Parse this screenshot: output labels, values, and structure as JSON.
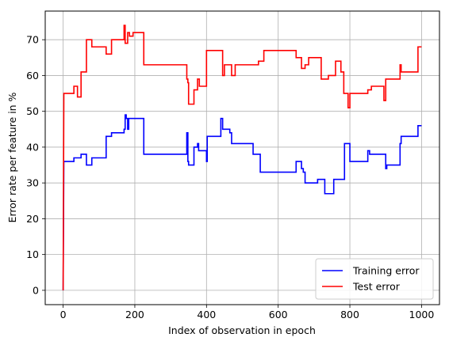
{
  "chart_data": {
    "type": "line",
    "title": "",
    "xlabel": "Index of observation in epoch",
    "ylabel": "Error rate per feature in %",
    "xlim": [
      -50,
      1050
    ],
    "ylim": [
      -4,
      78
    ],
    "xticks": [
      0,
      200,
      400,
      600,
      800,
      1000
    ],
    "yticks": [
      0,
      10,
      20,
      30,
      40,
      50,
      60,
      70
    ],
    "grid": true,
    "legend_position": "lower-right",
    "series": [
      {
        "name": "Training error",
        "color": "#0000ff",
        "points": [
          [
            0,
            0
          ],
          [
            2,
            36
          ],
          [
            30,
            36
          ],
          [
            30,
            37
          ],
          [
            50,
            37
          ],
          [
            50,
            38
          ],
          [
            65,
            38
          ],
          [
            65,
            35
          ],
          [
            80,
            35
          ],
          [
            80,
            37
          ],
          [
            120,
            37
          ],
          [
            120,
            43
          ],
          [
            135,
            43
          ],
          [
            135,
            44
          ],
          [
            170,
            44
          ],
          [
            170,
            45
          ],
          [
            173,
            45
          ],
          [
            173,
            49
          ],
          [
            176,
            49
          ],
          [
            176,
            48
          ],
          [
            180,
            48
          ],
          [
            180,
            45
          ],
          [
            183,
            45
          ],
          [
            183,
            48
          ],
          [
            225,
            48
          ],
          [
            225,
            38
          ],
          [
            345,
            38
          ],
          [
            345,
            44
          ],
          [
            348,
            44
          ],
          [
            348,
            36
          ],
          [
            350,
            36
          ],
          [
            350,
            35
          ],
          [
            365,
            35
          ],
          [
            365,
            40
          ],
          [
            375,
            40
          ],
          [
            375,
            41
          ],
          [
            378,
            41
          ],
          [
            378,
            39
          ],
          [
            400,
            39
          ],
          [
            400,
            36
          ],
          [
            402,
            36
          ],
          [
            402,
            43
          ],
          [
            440,
            43
          ],
          [
            440,
            48
          ],
          [
            445,
            48
          ],
          [
            445,
            45
          ],
          [
            465,
            45
          ],
          [
            465,
            44
          ],
          [
            470,
            44
          ],
          [
            470,
            41
          ],
          [
            530,
            41
          ],
          [
            530,
            38
          ],
          [
            550,
            38
          ],
          [
            550,
            33
          ],
          [
            650,
            33
          ],
          [
            650,
            36
          ],
          [
            665,
            36
          ],
          [
            665,
            34
          ],
          [
            670,
            34
          ],
          [
            670,
            33
          ],
          [
            675,
            33
          ],
          [
            675,
            30
          ],
          [
            710,
            30
          ],
          [
            710,
            31
          ],
          [
            730,
            31
          ],
          [
            730,
            27
          ],
          [
            755,
            27
          ],
          [
            755,
            31
          ],
          [
            785,
            31
          ],
          [
            785,
            41
          ],
          [
            800,
            41
          ],
          [
            800,
            36
          ],
          [
            850,
            36
          ],
          [
            850,
            39
          ],
          [
            855,
            39
          ],
          [
            855,
            38
          ],
          [
            900,
            38
          ],
          [
            900,
            34
          ],
          [
            903,
            34
          ],
          [
            903,
            35
          ],
          [
            940,
            35
          ],
          [
            940,
            41
          ],
          [
            943,
            41
          ],
          [
            943,
            43
          ],
          [
            990,
            43
          ],
          [
            990,
            46
          ],
          [
            1000,
            46
          ]
        ]
      },
      {
        "name": "Test error",
        "color": "#ff0000",
        "points": [
          [
            0,
            0
          ],
          [
            2,
            55
          ],
          [
            30,
            55
          ],
          [
            30,
            57
          ],
          [
            40,
            57
          ],
          [
            40,
            54
          ],
          [
            50,
            54
          ],
          [
            50,
            61
          ],
          [
            65,
            61
          ],
          [
            65,
            70
          ],
          [
            80,
            70
          ],
          [
            80,
            68
          ],
          [
            120,
            68
          ],
          [
            120,
            66
          ],
          [
            135,
            66
          ],
          [
            135,
            70
          ],
          [
            170,
            70
          ],
          [
            170,
            74
          ],
          [
            173,
            74
          ],
          [
            173,
            69
          ],
          [
            180,
            69
          ],
          [
            180,
            72
          ],
          [
            185,
            72
          ],
          [
            185,
            71
          ],
          [
            195,
            71
          ],
          [
            195,
            72
          ],
          [
            225,
            72
          ],
          [
            225,
            63
          ],
          [
            345,
            63
          ],
          [
            345,
            59
          ],
          [
            348,
            59
          ],
          [
            348,
            58
          ],
          [
            350,
            58
          ],
          [
            350,
            52
          ],
          [
            365,
            52
          ],
          [
            365,
            56
          ],
          [
            375,
            56
          ],
          [
            375,
            59
          ],
          [
            380,
            59
          ],
          [
            380,
            57
          ],
          [
            400,
            57
          ],
          [
            400,
            67
          ],
          [
            445,
            67
          ],
          [
            445,
            60
          ],
          [
            450,
            60
          ],
          [
            450,
            63
          ],
          [
            470,
            63
          ],
          [
            470,
            60
          ],
          [
            480,
            60
          ],
          [
            480,
            63
          ],
          [
            545,
            63
          ],
          [
            545,
            64
          ],
          [
            560,
            64
          ],
          [
            560,
            67
          ],
          [
            650,
            67
          ],
          [
            650,
            65
          ],
          [
            665,
            65
          ],
          [
            665,
            62
          ],
          [
            675,
            62
          ],
          [
            675,
            63
          ],
          [
            685,
            63
          ],
          [
            685,
            65
          ],
          [
            720,
            65
          ],
          [
            720,
            59
          ],
          [
            740,
            59
          ],
          [
            740,
            60
          ],
          [
            760,
            60
          ],
          [
            760,
            64
          ],
          [
            775,
            64
          ],
          [
            775,
            61
          ],
          [
            783,
            61
          ],
          [
            783,
            55
          ],
          [
            795,
            55
          ],
          [
            795,
            51
          ],
          [
            800,
            51
          ],
          [
            800,
            55
          ],
          [
            850,
            55
          ],
          [
            850,
            56
          ],
          [
            860,
            56
          ],
          [
            860,
            57
          ],
          [
            895,
            57
          ],
          [
            895,
            53
          ],
          [
            900,
            53
          ],
          [
            900,
            59
          ],
          [
            940,
            59
          ],
          [
            940,
            63
          ],
          [
            943,
            63
          ],
          [
            943,
            61
          ],
          [
            990,
            61
          ],
          [
            990,
            68
          ],
          [
            1000,
            68
          ]
        ]
      }
    ]
  }
}
